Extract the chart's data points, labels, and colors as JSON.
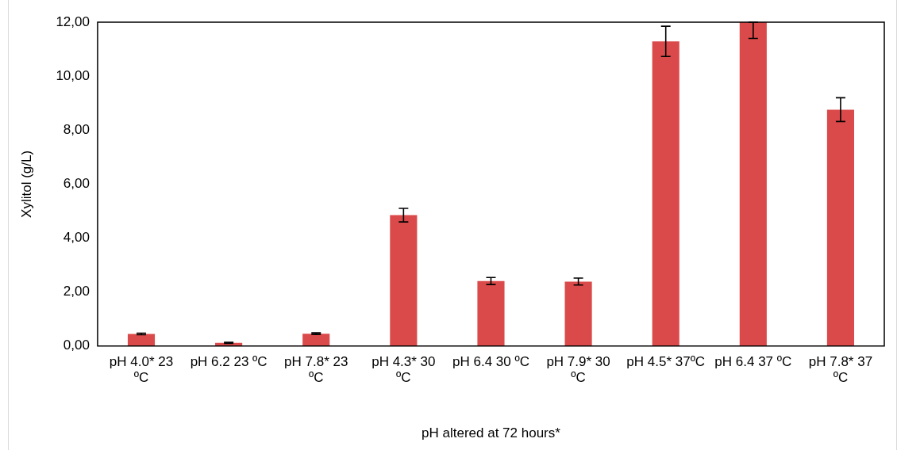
{
  "chart_data": {
    "type": "bar",
    "xlabel": "pH altered at 72 hours*",
    "ylabel": "Xylitol (g/L)",
    "categories": [
      "pH 4.0* 23 ºC",
      "pH 6.2 23 ºC",
      "pH 7.8* 23 ºC",
      "pH 4.3* 30 ºC",
      "pH 6.4 30 ºC",
      "pH 7.9* 30 ºC",
      "pH 4.5* 37ºC",
      "pH 6.4 37 ºC",
      "pH 7.8* 37 ºC"
    ],
    "values": [
      0.45,
      0.12,
      0.46,
      4.85,
      2.41,
      2.39,
      11.29,
      12.0,
      8.76
    ],
    "errors": [
      0.03,
      0.02,
      0.03,
      0.25,
      0.13,
      0.13,
      0.56,
      [
        11.4,
        12.0
      ],
      0.44
    ],
    "color": "#db4a4a",
    "ylim": [
      0,
      12
    ],
    "yticks": [
      {
        "value": 0,
        "label": "0,00"
      },
      {
        "value": 2,
        "label": "2,00"
      },
      {
        "value": 4,
        "label": "4,00"
      },
      {
        "value": 6,
        "label": "6,00"
      },
      {
        "value": 8,
        "label": "8,00"
      },
      {
        "value": 10,
        "label": "10,00"
      },
      {
        "value": 12,
        "label": "12,00"
      }
    ],
    "grid": false,
    "legend": false
  }
}
